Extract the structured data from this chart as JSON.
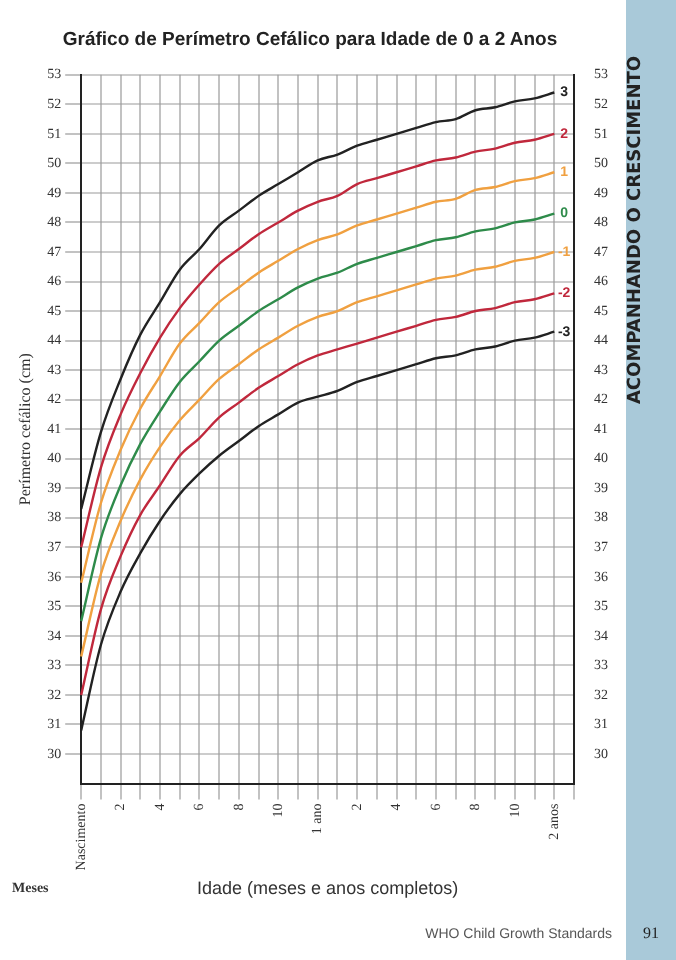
{
  "chart_data": {
    "type": "line",
    "title": "Gráfico de Perímetro Cefálico para Idade de 0 a 2 Anos",
    "xlabel": "Idade (meses e anos completos)",
    "ylabel": "Perímetro cefálico (cm)",
    "annotations": [
      "Meses",
      "WHO Child Growth Standards",
      "ACOMPANHANDO O CRESCIMENTO",
      "91"
    ],
    "categories": [
      "Nascimento",
      null,
      "2",
      null,
      "4",
      null,
      "6",
      null,
      "8",
      null,
      "10",
      null,
      "1 ano",
      null,
      "2",
      null,
      "4",
      null,
      "6",
      null,
      "8",
      null,
      "10",
      null,
      "2 anos",
      null
    ],
    "series": [
      {
        "name": "3",
        "color": "#222222",
        "values": [
          38.3,
          40.9,
          42.7,
          44.2,
          45.3,
          46.4,
          47.1,
          47.9,
          48.4,
          48.9,
          49.3,
          49.7,
          50.1,
          50.3,
          50.6,
          50.8,
          51.0,
          51.2,
          51.4,
          51.5,
          51.8,
          51.9,
          52.1,
          52.2,
          52.4,
          null
        ]
      },
      {
        "name": "2",
        "color": "#c0283c",
        "values": [
          37.0,
          39.7,
          41.5,
          42.9,
          44.1,
          45.1,
          45.9,
          46.6,
          47.1,
          47.6,
          48.0,
          48.4,
          48.7,
          48.9,
          49.3,
          49.5,
          49.7,
          49.9,
          50.1,
          50.2,
          50.4,
          50.5,
          50.7,
          50.8,
          51.0,
          null
        ]
      },
      {
        "name": "1",
        "color": "#f0a040",
        "values": [
          35.8,
          38.5,
          40.3,
          41.7,
          42.8,
          43.9,
          44.6,
          45.3,
          45.8,
          46.3,
          46.7,
          47.1,
          47.4,
          47.6,
          47.9,
          48.1,
          48.3,
          48.5,
          48.7,
          48.8,
          49.1,
          49.2,
          49.4,
          49.5,
          49.7,
          null
        ]
      },
      {
        "name": "0",
        "color": "#2e8b4a",
        "values": [
          34.5,
          37.3,
          39.1,
          40.5,
          41.6,
          42.6,
          43.3,
          44.0,
          44.5,
          45.0,
          45.4,
          45.8,
          46.1,
          46.3,
          46.6,
          46.8,
          47.0,
          47.2,
          47.4,
          47.5,
          47.7,
          47.8,
          48.0,
          48.1,
          48.3,
          null
        ]
      },
      {
        "name": "-1",
        "color": "#f0a040",
        "values": [
          33.3,
          36.1,
          37.9,
          39.3,
          40.4,
          41.3,
          42.0,
          42.7,
          43.2,
          43.7,
          44.1,
          44.5,
          44.8,
          45.0,
          45.3,
          45.5,
          45.7,
          45.9,
          46.1,
          46.2,
          46.4,
          46.5,
          46.7,
          46.8,
          47.0,
          null
        ]
      },
      {
        "name": "-2",
        "color": "#c0283c",
        "values": [
          32.0,
          34.9,
          36.7,
          38.1,
          39.1,
          40.1,
          40.7,
          41.4,
          41.9,
          42.4,
          42.8,
          43.2,
          43.5,
          43.7,
          43.9,
          44.1,
          44.3,
          44.5,
          44.7,
          44.8,
          45.0,
          45.1,
          45.3,
          45.4,
          45.6,
          null
        ]
      },
      {
        "name": "-3",
        "color": "#222222",
        "values": [
          30.8,
          33.7,
          35.5,
          36.8,
          37.9,
          38.8,
          39.5,
          40.1,
          40.6,
          41.1,
          41.5,
          41.9,
          42.1,
          42.3,
          42.6,
          42.8,
          43.0,
          43.2,
          43.4,
          43.5,
          43.7,
          43.8,
          44.0,
          44.1,
          44.3,
          null
        ]
      }
    ],
    "ylim": [
      29,
      53
    ],
    "yticks": [
      30,
      31,
      32,
      33,
      34,
      35,
      36,
      37,
      38,
      39,
      40,
      41,
      42,
      43,
      44,
      45,
      46,
      47,
      48,
      49,
      50,
      51,
      52,
      53
    ],
    "y2lim": [
      29,
      53
    ],
    "y2ticks": [
      30,
      31,
      32,
      33,
      34,
      35,
      36,
      37,
      38,
      39,
      40,
      41,
      42,
      43,
      44,
      45,
      46,
      47,
      48,
      49,
      50,
      51,
      52,
      53
    ],
    "grid": true
  }
}
